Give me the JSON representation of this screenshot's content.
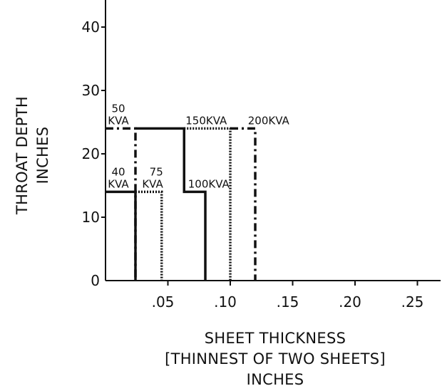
{
  "chart_data": {
    "type": "line",
    "title": "",
    "xlabel_lines": [
      "SHEET THICKNESS",
      "[THINNEST OF TWO SHEETS]",
      "INCHES"
    ],
    "ylabel_lines": [
      "THROAT DEPTH",
      "INCHES"
    ],
    "xlim": [
      0,
      0.27
    ],
    "ylim": [
      0,
      44
    ],
    "x_ticks": [
      {
        "value": 0.05,
        "label": ".05"
      },
      {
        "value": 0.1,
        "label": ".10"
      },
      {
        "value": 0.15,
        "label": ".15"
      },
      {
        "value": 0.2,
        "label": ".20"
      },
      {
        "value": 0.25,
        "label": ".25"
      }
    ],
    "y_ticks": [
      {
        "value": 0,
        "label": "0"
      },
      {
        "value": 10,
        "label": "10"
      },
      {
        "value": 20,
        "label": "20"
      },
      {
        "value": 30,
        "label": "30"
      },
      {
        "value": 40,
        "label": "40"
      }
    ],
    "grid": false,
    "series": [
      {
        "name": "40 KVA",
        "line_style": "solid",
        "points": [
          [
            0,
            14
          ],
          [
            0.024,
            14
          ],
          [
            0.024,
            0
          ]
        ]
      },
      {
        "name": "50 KVA",
        "line_style": "dash-dot",
        "points": [
          [
            0,
            24
          ],
          [
            0.024,
            24
          ],
          [
            0.024,
            0
          ]
        ]
      },
      {
        "name": "75 KVA",
        "line_style": "dotted",
        "points": [
          [
            0.024,
            14
          ],
          [
            0.045,
            14
          ],
          [
            0.045,
            0
          ]
        ]
      },
      {
        "name": "100KVA",
        "line_style": "solid",
        "points": [
          [
            0.024,
            24
          ],
          [
            0.063,
            24
          ],
          [
            0.063,
            14
          ],
          [
            0.08,
            14
          ],
          [
            0.08,
            0
          ]
        ]
      },
      {
        "name": "150KVA",
        "line_style": "dotted",
        "points": [
          [
            0.063,
            24
          ],
          [
            0.1,
            24
          ],
          [
            0.1,
            0
          ]
        ]
      },
      {
        "name": "200KVA",
        "line_style": "dash-dot",
        "points": [
          [
            0.1,
            24
          ],
          [
            0.12,
            24
          ],
          [
            0.12,
            0
          ]
        ]
      }
    ],
    "labels": [
      {
        "series": "50 KVA",
        "lines": [
          "50",
          "KVA"
        ],
        "x": 0.0,
        "y": 24.2,
        "align": "start",
        "anchor": "middle"
      },
      {
        "series": "40 KVA",
        "lines": [
          "40",
          "KVA"
        ],
        "x": 0.0,
        "y": 14.2,
        "align": "start",
        "anchor": "middle"
      },
      {
        "series": "75 KVA",
        "lines": [
          "75",
          "KVA"
        ],
        "x": 0.045,
        "y": 14.2,
        "align": "start",
        "anchor": "end"
      },
      {
        "series": "100KVA",
        "lines": [
          "100KVA"
        ],
        "x": 0.065,
        "y": 14.2,
        "align": "start",
        "anchor": "start"
      },
      {
        "series": "150KVA",
        "lines": [
          "150KVA"
        ],
        "x": 0.063,
        "y": 24.2,
        "align": "start",
        "anchor": "start"
      },
      {
        "series": "200KVA",
        "lines": [
          "200KVA"
        ],
        "x": 0.113,
        "y": 24.2,
        "align": "start",
        "anchor": "start"
      }
    ],
    "colors": {
      "ink": "#111111",
      "background": "#ffffff"
    }
  }
}
